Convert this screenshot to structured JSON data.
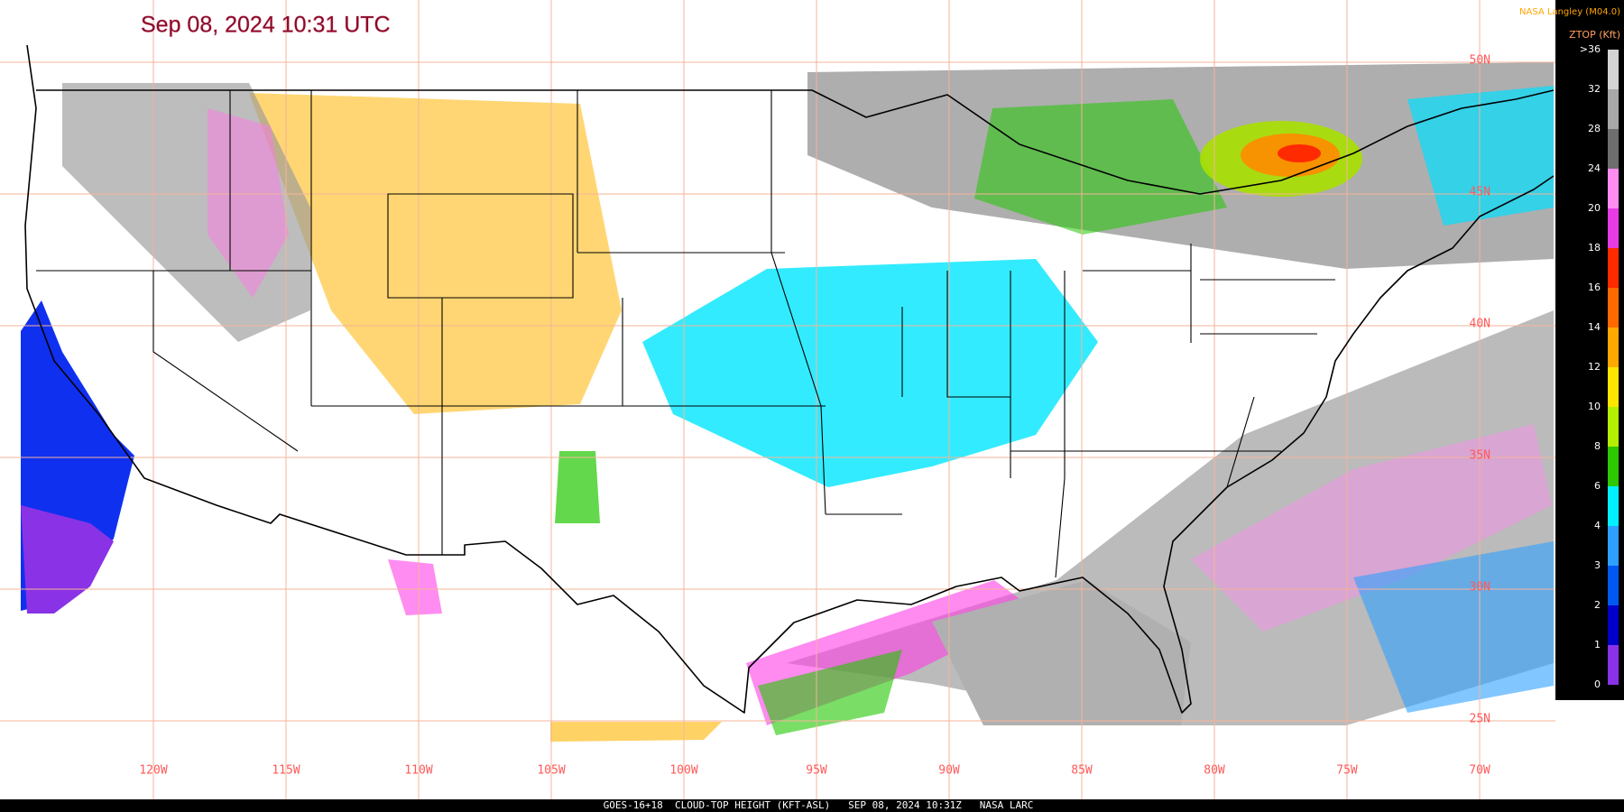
{
  "header": {
    "title": "Sep 08, 2024 10:31 UTC",
    "credit": "NASA Langley (M04.0)"
  },
  "legend": {
    "title": "ZTOP (Kft)",
    "labels": [
      ">36",
      "32",
      "28",
      "24",
      "20",
      "18",
      "16",
      "14",
      "12",
      "10",
      "8",
      "6",
      "4",
      "3",
      "2",
      "1",
      "0"
    ],
    "colors": [
      "#d4d4d4",
      "#a8a8a8",
      "#6e6e6e",
      "#ff8cf0",
      "#e63ce6",
      "#ff2a00",
      "#ff6a00",
      "#ffa800",
      "#ffe600",
      "#b4ee00",
      "#2ec800",
      "#00f0ff",
      "#2ea0ff",
      "#0058f0",
      "#0000c8",
      "#8a32e6"
    ]
  },
  "map": {
    "lon_labels": [
      "120W",
      "115W",
      "110W",
      "105W",
      "100W",
      "95W",
      "90W",
      "85W",
      "80W",
      "75W",
      "70W"
    ],
    "lat_labels": [
      "50N",
      "45N",
      "40N",
      "35N",
      "30N",
      "25N"
    ]
  },
  "footer": {
    "text": "GOES-16+18  CLOUD-TOP HEIGHT (KFT-ASL)   SEP 08, 2024 10:31Z   NASA LARC"
  }
}
